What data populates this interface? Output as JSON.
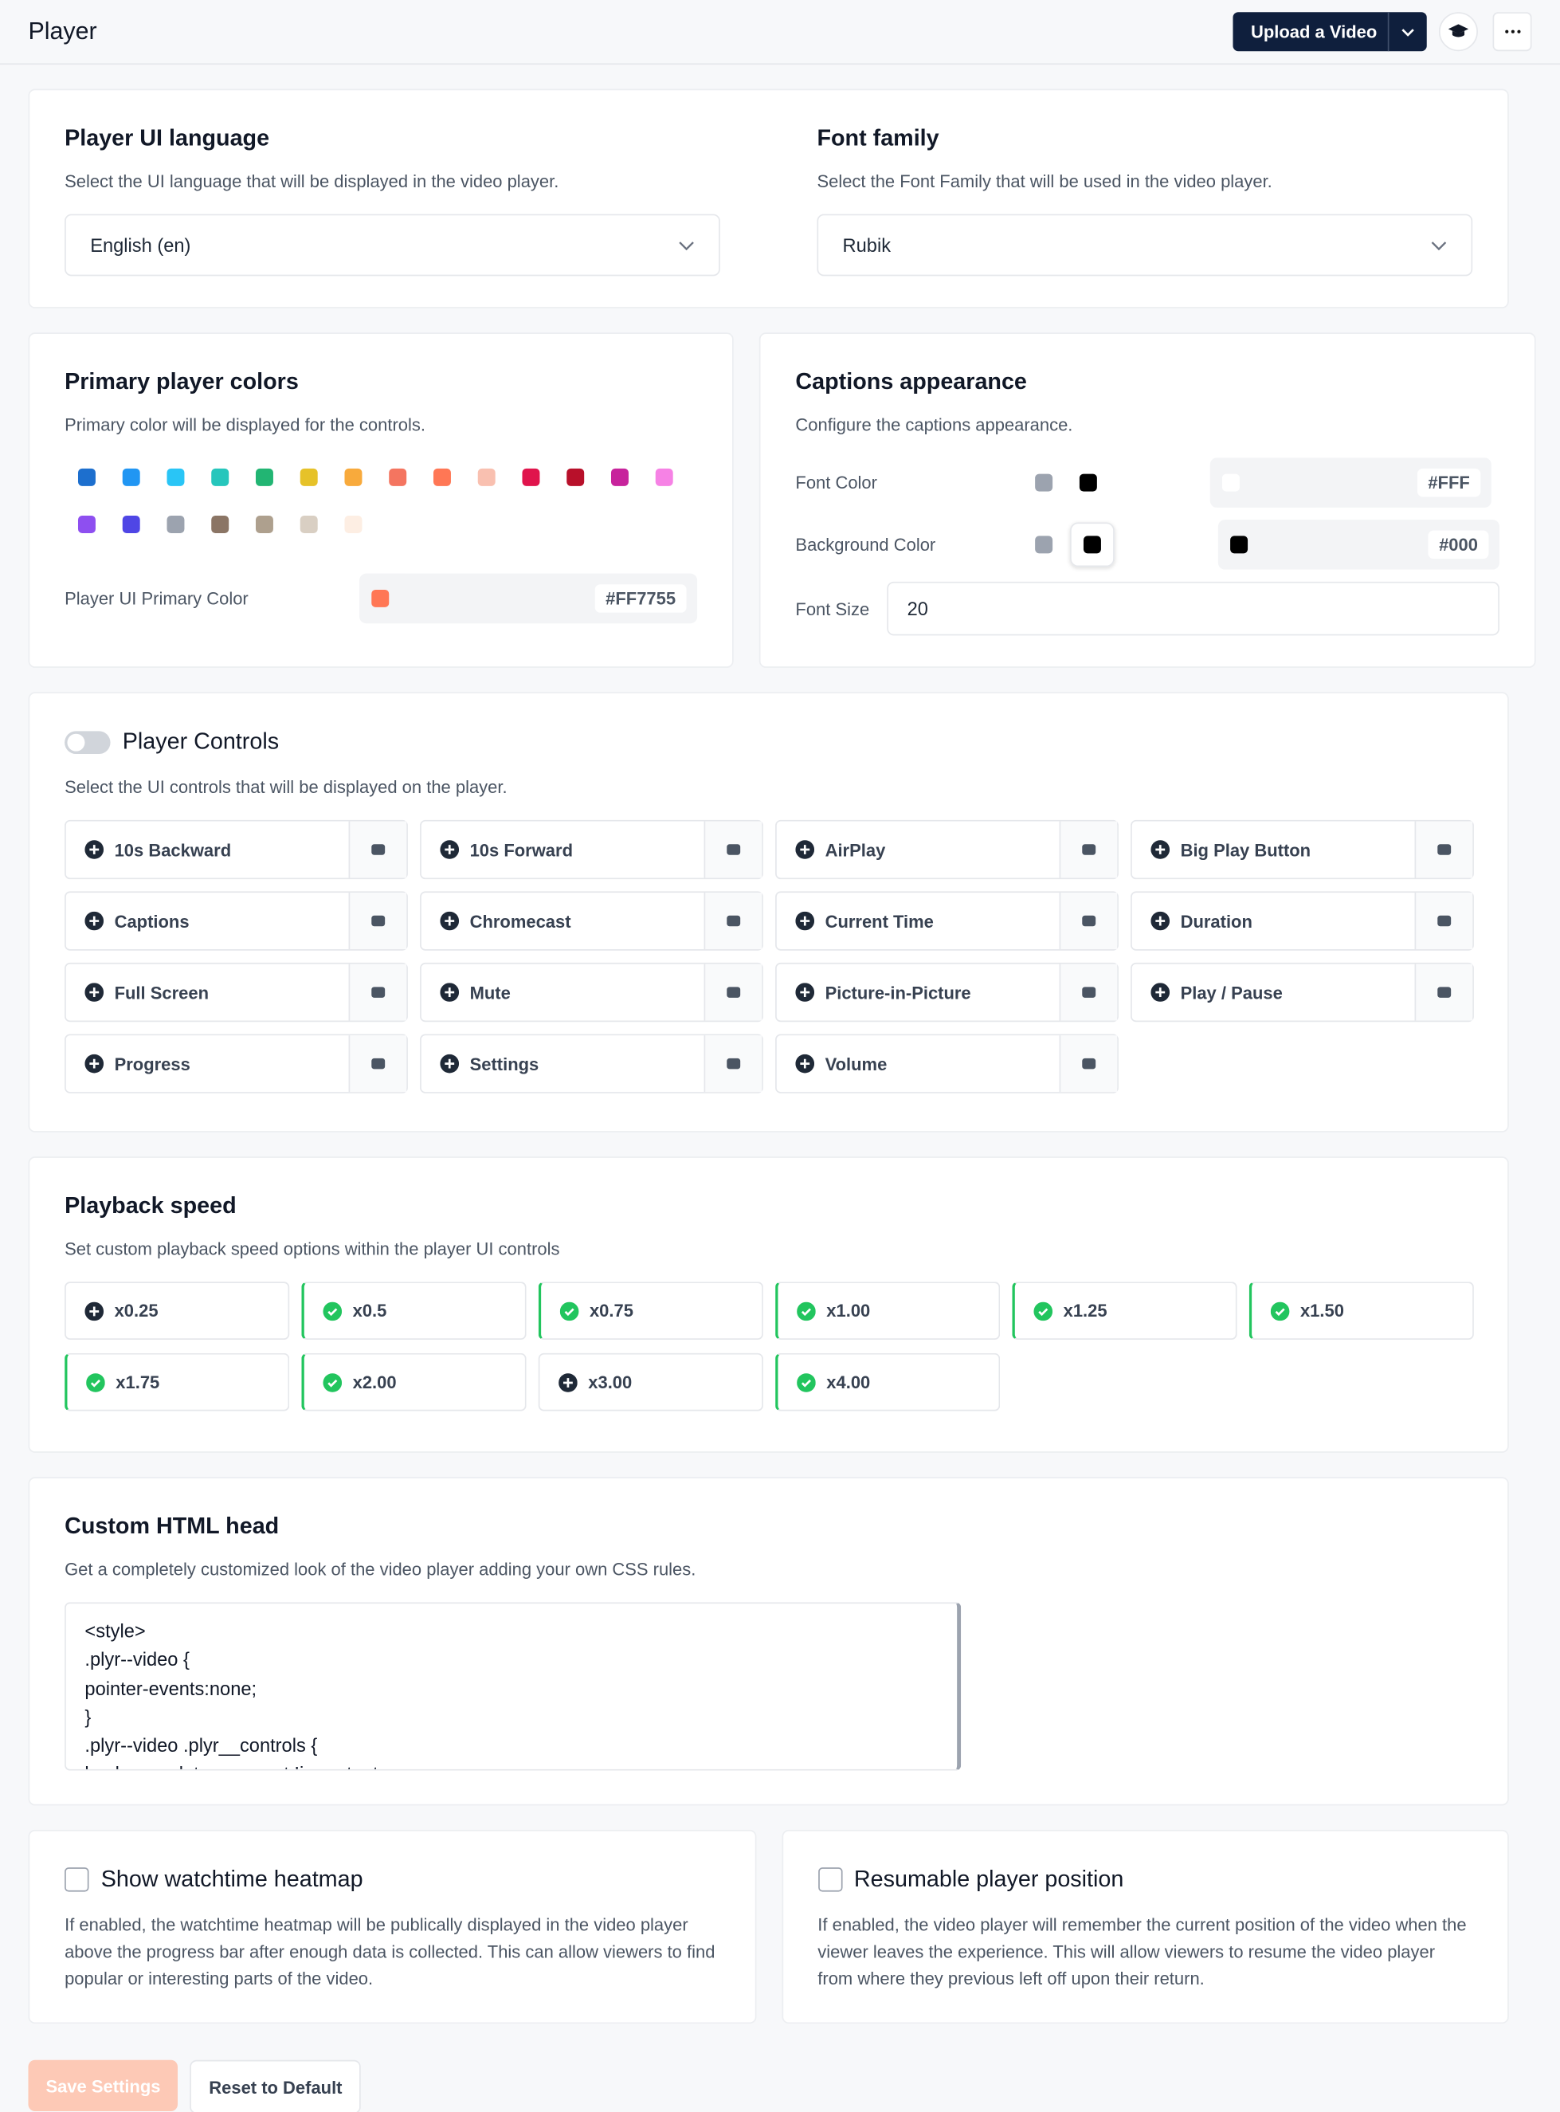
{
  "header": {
    "title": "Player",
    "upload_button": "Upload a Video"
  },
  "ui_language": {
    "title": "Player UI language",
    "description": "Select the UI language that will be displayed in the video player.",
    "value": "English (en)"
  },
  "font_family": {
    "title": "Font family",
    "description": "Select the Font Family that will be used in the video player.",
    "value": "Rubik"
  },
  "primary_colors": {
    "title": "Primary player colors",
    "description": "Primary color will be displayed for the controls.",
    "swatches": [
      "#1d6fce",
      "#2196f3",
      "#29c5f6",
      "#26c6bc",
      "#22b573",
      "#e6c229",
      "#f8aa3c",
      "#f47560",
      "#ff7755",
      "#f9c0b0",
      "#e0144c",
      "#b8102a",
      "#c7239c",
      "#f682e5",
      "#8e4ff0",
      "#4f46e5",
      "#9ca3af",
      "#8b7565",
      "#aea08e",
      "#d9cfc3",
      "#fdeee3"
    ],
    "label": "Player UI Primary Color",
    "value": "#FF7755"
  },
  "captions": {
    "title": "Captions appearance",
    "description": "Configure the captions appearance.",
    "font_color_label": "Font Color",
    "font_color": "#FFF",
    "background_color_label": "Background Color",
    "background_color": "#000",
    "font_size_label": "Font Size",
    "font_size": "20"
  },
  "player_controls": {
    "title": "Player Controls",
    "description": "Select the UI controls that will be displayed on the player.",
    "enabled": false,
    "items": [
      "10s Backward",
      "10s Forward",
      "AirPlay",
      "Big Play Button",
      "Captions",
      "Chromecast",
      "Current Time",
      "Duration",
      "Full Screen",
      "Mute",
      "Picture-in-Picture",
      "Play / Pause",
      "Progress",
      "Settings",
      "Volume"
    ]
  },
  "playback_speed": {
    "title": "Playback speed",
    "description": "Set custom playback speed options within the player UI controls",
    "options": [
      {
        "label": "x0.25",
        "checked": false
      },
      {
        "label": "x0.5",
        "checked": true
      },
      {
        "label": "x0.75",
        "checked": true
      },
      {
        "label": "x1.00",
        "checked": true
      },
      {
        "label": "x1.25",
        "checked": true
      },
      {
        "label": "x1.50",
        "checked": true
      },
      {
        "label": "x1.75",
        "checked": true
      },
      {
        "label": "x2.00",
        "checked": true
      },
      {
        "label": "x3.00",
        "checked": false
      },
      {
        "label": "x4.00",
        "checked": true
      }
    ]
  },
  "custom_head": {
    "title": "Custom HTML head",
    "description": "Get a completely customized look of the video player adding your own CSS rules.",
    "code": [
      "<style>",
      ".plyr--video {",
      "pointer-events:none;",
      "}",
      ".plyr--video .plyr__controls {",
      "background: transparent !important;"
    ]
  },
  "heatmap": {
    "title": "Show watchtime heatmap",
    "description": "If enabled, the watchtime heatmap will be publically displayed in the video player above the progress bar after enough data is collected. This can allow viewers to find popular or interesting parts of the video."
  },
  "resumable": {
    "title": "Resumable player position",
    "description": "If enabled, the video player will remember the current position of the video when the viewer leaves the experience. This will allow viewers to resume the video player from where they previous left off upon their return."
  },
  "footer": {
    "save": "Save Settings",
    "reset": "Reset to Default"
  }
}
